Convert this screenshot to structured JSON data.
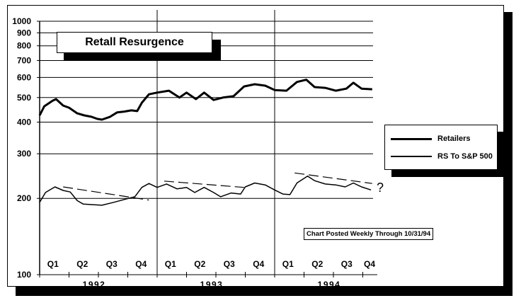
{
  "title": "Retall Resurgence",
  "note": "Chart Posted Weekly Through 10/31/94",
  "annotation": "?",
  "legend": {
    "items": [
      {
        "label": "Retailers",
        "stroke_width": 3
      },
      {
        "label": "RS To S&P 500",
        "stroke_width": 1.5
      }
    ]
  },
  "axes": {
    "y_ticks": [
      "1000",
      "900",
      "800",
      "700",
      "600",
      "500",
      "400",
      "300",
      "200",
      "100"
    ],
    "quarters": [
      "Q1",
      "Q2",
      "Q3",
      "Q4",
      "Q1",
      "Q2",
      "Q3",
      "Q4",
      "Q1",
      "Q2",
      "Q3",
      "Q4"
    ],
    "years": [
      "1992",
      "1993",
      "1994"
    ]
  },
  "chart_data": {
    "type": "line",
    "title": "Retall Resurgence",
    "xlabel": "",
    "ylabel": "",
    "y_scale": "log",
    "ylim": [
      100,
      1000
    ],
    "y_ticks": [
      100,
      200,
      300,
      400,
      500,
      600,
      700,
      800,
      900,
      1000
    ],
    "x_ticks": [
      "Q1 1992",
      "Q2 1992",
      "Q3 1992",
      "Q4 1992",
      "Q1 1993",
      "Q2 1993",
      "Q3 1993",
      "Q4 1993",
      "Q1 1994",
      "Q2 1994",
      "Q3 1994",
      "Q4 1994"
    ],
    "x_range": [
      "1992-01",
      "1994-10-31"
    ],
    "grid": {
      "horizontal": true,
      "vertical_year_separators": true
    },
    "legend_position": "right",
    "annotations": [
      "Chart Posted Weekly Through 10/31/94",
      "?"
    ],
    "series": [
      {
        "name": "Retailers",
        "x": [
          0.0,
          0.04,
          0.11,
          0.14,
          0.2,
          0.25,
          0.32,
          0.38,
          0.44,
          0.49,
          0.53,
          0.6,
          0.66,
          0.72,
          0.78,
          0.83,
          0.87,
          0.93,
          1.0,
          1.1,
          1.19,
          1.25,
          1.33,
          1.4,
          1.48,
          1.56,
          1.65,
          1.74,
          1.83,
          1.92,
          2.0,
          2.1,
          2.19,
          2.27,
          2.34,
          2.43,
          2.52,
          2.61,
          2.67,
          2.74,
          2.83
        ],
        "values": [
          425,
          462,
          486,
          493,
          465,
          456,
          433,
          425,
          420,
          412,
          409,
          420,
          437,
          440,
          445,
          442,
          477,
          515,
          523,
          532,
          500,
          523,
          493,
          523,
          489,
          500,
          506,
          553,
          564,
          557,
          535,
          532,
          576,
          588,
          550,
          546,
          532,
          542,
          572,
          542,
          539
        ]
      },
      {
        "name": "RS To S&P 500",
        "x": [
          0.0,
          0.05,
          0.13,
          0.2,
          0.26,
          0.32,
          0.37,
          0.44,
          0.53,
          0.63,
          0.72,
          0.81,
          0.87,
          0.93,
          1.0,
          1.08,
          1.17,
          1.25,
          1.32,
          1.4,
          1.48,
          1.54,
          1.63,
          1.71,
          1.75,
          1.83,
          1.92,
          2.0,
          2.07,
          2.13,
          2.19,
          2.28,
          2.34,
          2.43,
          2.52,
          2.6,
          2.67,
          2.74,
          2.82
        ],
        "values": [
          193,
          211,
          222,
          215,
          212,
          196,
          190,
          189,
          188,
          193,
          198,
          203,
          221,
          229,
          221,
          228,
          218,
          221,
          211,
          221,
          211,
          203,
          210,
          208,
          222,
          230,
          226,
          216,
          208,
          207,
          230,
          245,
          235,
          228,
          226,
          222,
          230,
          222,
          216
        ]
      }
    ],
    "trend_lines": [
      {
        "series": "RS To S&P 500",
        "style": "dashed",
        "from": {
          "x": 0.2,
          "y": 222
        },
        "to": {
          "x": 0.93,
          "y": 197
        }
      },
      {
        "series": "RS To S&P 500",
        "style": "dashed",
        "from": {
          "x": 1.06,
          "y": 234
        },
        "to": {
          "x": 1.74,
          "y": 221
        }
      },
      {
        "series": "RS To S&P 500",
        "style": "dashed",
        "from": {
          "x": 2.17,
          "y": 252
        },
        "to": {
          "x": 2.83,
          "y": 229
        }
      }
    ],
    "x_units": "years since Jan 1992"
  }
}
